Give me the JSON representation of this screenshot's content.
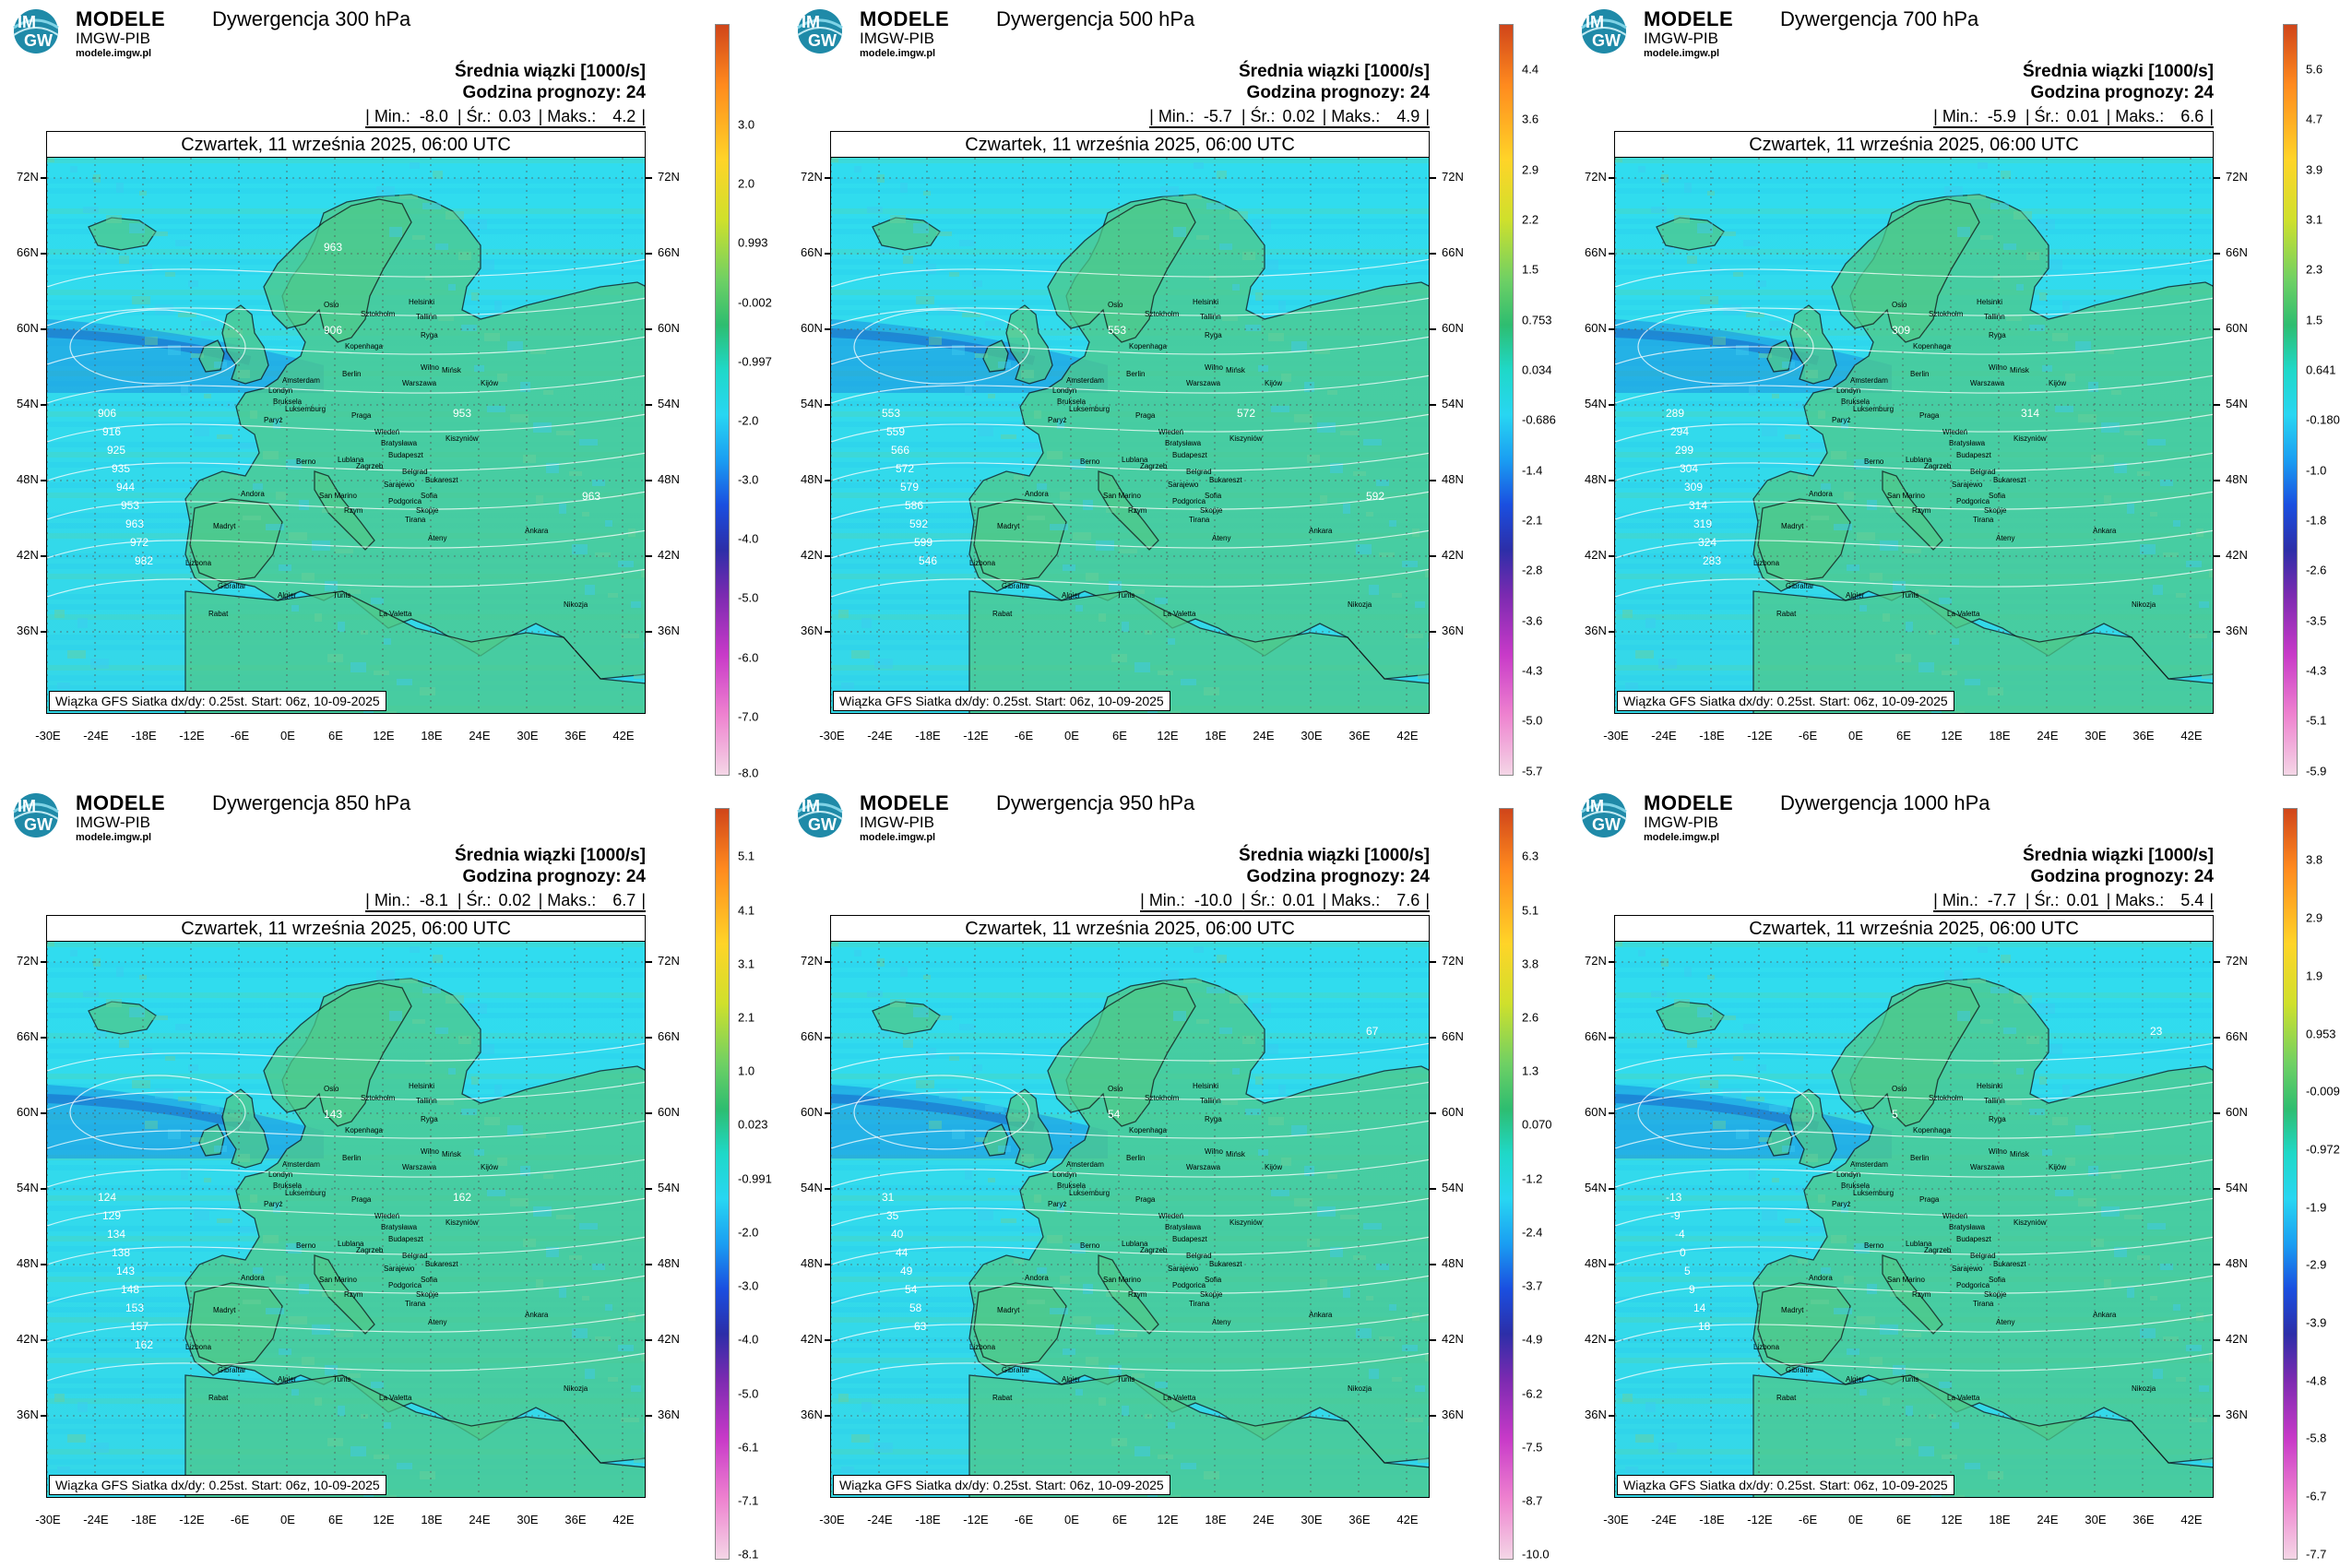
{
  "common": {
    "logo_line1": "MODELE",
    "logo_line2": "IMGW-PIB",
    "logo_line3": "modele.imgw.pl",
    "logo_mark_top": "IM",
    "logo_mark_bottom": "GW",
    "info_line1": "Średnia wiązki [1000/s]",
    "info_line2": "Godzina prognozy: 24",
    "stat_min_label": "| Min.:",
    "stat_avg_label": "| Śr.:",
    "stat_max_label": "| Maks.:",
    "stat_end": "|",
    "date": "Czwartek, 11 września 2025, 06:00 UTC",
    "footnote": "Wiązka GFS Siatka dx/dy: 0.25st. Start: 06z, 10-09-2025",
    "lat_labels": [
      "72N",
      "66N",
      "60N",
      "54N",
      "48N",
      "42N",
      "36N"
    ],
    "lon_labels": [
      "-30E",
      "-24E",
      "-18E",
      "-12E",
      "-6E",
      "0E",
      "6E",
      "12E",
      "18E",
      "24E",
      "30E",
      "36E",
      "42E"
    ],
    "colors": {
      "sea": "#28d8f0",
      "land": "#4ec98a",
      "wave": "#1a8fe0",
      "border": "#111111"
    },
    "cities": [
      "Oslo",
      "Sztokholm",
      "Helsinki",
      "Tallinn",
      "Ryga",
      "Wilno",
      "Mińsk",
      "Kopenhaga",
      "Amsterdam",
      "Berlin",
      "Warszawa",
      "Londyn",
      "Bruksela",
      "Luksemburg",
      "Paryż",
      "Praga",
      "Wiedeń",
      "Bratysława",
      "Budapeszt",
      "Kiszyniów",
      "Berno",
      "Lublana",
      "Zagrzeb",
      "Belgrad",
      "Bukareszt",
      "Sofia",
      "Skopje",
      "Sarajewo",
      "Podgorica",
      "Tirana",
      "Ateny",
      "Rzym",
      "San Marino",
      "Andora",
      "Madryt",
      "Lizbona",
      "Gibraltar",
      "Rabat",
      "Algier",
      "Tunis",
      "La Valetta",
      "Ankara",
      "Nikozja",
      "Kijów"
    ]
  },
  "panels": [
    {
      "title": "Dywergencja 300 hPa",
      "min": "-8.0",
      "avg": "0.03",
      "max": "4.2",
      "colorbar_labels": [
        "3.0",
        "2.0",
        "0.993",
        "-0.002",
        "-0.997",
        "-2.0",
        "-3.0",
        "-4.0",
        "-5.0",
        "-6.0",
        "-7.0",
        "-8.0"
      ],
      "contour_labels": [
        "906",
        "916",
        "925",
        "935",
        "944",
        "953",
        "963",
        "972",
        "982",
        "906",
        "953",
        "963",
        "963"
      ]
    },
    {
      "title": "Dywergencja 500 hPa",
      "min": "-5.7",
      "avg": "0.02",
      "max": "4.9",
      "colorbar_labels": [
        "4.4",
        "3.6",
        "2.9",
        "2.2",
        "1.5",
        "0.753",
        "0.034",
        "-0.686",
        "-1.4",
        "-2.1",
        "-2.8",
        "-3.6",
        "-4.3",
        "-5.0",
        "-5.7"
      ],
      "contour_labels": [
        "553",
        "559",
        "566",
        "572",
        "579",
        "586",
        "592",
        "599",
        "546",
        "553",
        "572",
        "592"
      ]
    },
    {
      "title": "Dywergencja 700 hPa",
      "min": "-5.9",
      "avg": "0.01",
      "max": "6.6",
      "colorbar_labels": [
        "5.6",
        "4.7",
        "3.9",
        "3.1",
        "2.3",
        "1.5",
        "0.641",
        "-0.180",
        "-1.0",
        "-1.8",
        "-2.6",
        "-3.5",
        "-4.3",
        "-5.1",
        "-5.9"
      ],
      "contour_labels": [
        "289",
        "294",
        "299",
        "304",
        "309",
        "314",
        "319",
        "324",
        "283",
        "309",
        "314"
      ]
    },
    {
      "title": "Dywergencja 850 hPa",
      "min": "-8.1",
      "avg": "0.02",
      "max": "6.7",
      "colorbar_labels": [
        "5.1",
        "4.1",
        "3.1",
        "2.1",
        "1.0",
        "0.023",
        "-0.991",
        "-2.0",
        "-3.0",
        "-4.0",
        "-5.0",
        "-6.1",
        "-7.1",
        "-8.1"
      ],
      "contour_labels": [
        "124",
        "129",
        "134",
        "138",
        "143",
        "148",
        "153",
        "157",
        "162",
        "143",
        "162"
      ]
    },
    {
      "title": "Dywergencja 950 hPa",
      "min": "-10.0",
      "avg": "0.01",
      "max": "7.6",
      "colorbar_labels": [
        "6.3",
        "5.1",
        "3.8",
        "2.6",
        "1.3",
        "0.070",
        "-1.2",
        "-2.4",
        "-3.7",
        "-4.9",
        "-6.2",
        "-7.5",
        "-8.7",
        "-10.0"
      ],
      "contour_labels": [
        "31",
        "35",
        "40",
        "44",
        "49",
        "54",
        "58",
        "63",
        "67",
        "54"
      ]
    },
    {
      "title": "Dywergencja 1000 hPa",
      "min": "-7.7",
      "avg": "0.01",
      "max": "5.4",
      "colorbar_labels": [
        "3.8",
        "2.9",
        "1.9",
        "0.953",
        "-0.009",
        "-0.972",
        "-1.9",
        "-2.9",
        "-3.9",
        "-4.8",
        "-5.8",
        "-6.7",
        "-7.7"
      ],
      "contour_labels": [
        "-13",
        "-9",
        "-4",
        "0",
        "5",
        "9",
        "14",
        "18",
        "23",
        "5"
      ]
    }
  ]
}
